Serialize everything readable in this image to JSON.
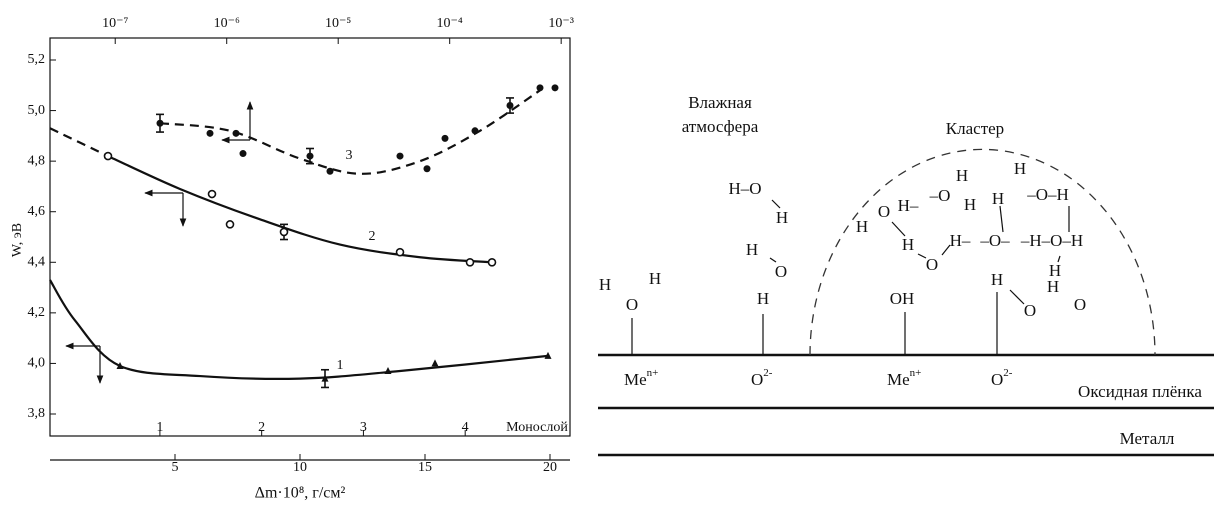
{
  "chart_data": {
    "type": "scatter",
    "ylabel": "W, эВ",
    "xlabel": "Δm·10⁸, г/см²",
    "x2label": "Монослой",
    "xlim": [
      0,
      20.8
    ],
    "xticks": [
      5,
      10,
      15,
      20
    ],
    "x2lim": [
      -0.08,
      5.03
    ],
    "x2ticks": [
      1,
      2,
      3,
      4
    ],
    "x3lim": [
      2.6e-08,
      0.0012
    ],
    "x3log": true,
    "x3ticks": [
      {
        "value": 1e-07,
        "label": "10⁻⁷"
      },
      {
        "value": 1e-06,
        "label": "10⁻⁶"
      },
      {
        "value": 1e-05,
        "label": "10⁻⁵"
      },
      {
        "value": 0.0001,
        "label": "10⁻⁴"
      },
      {
        "value": 0.001,
        "label": "10⁻³"
      }
    ],
    "ylim": [
      3.713,
      5.287
    ],
    "yticks": [
      {
        "value": 3.8,
        "label": "3,8"
      },
      {
        "value": 4.0,
        "label": "4,0"
      },
      {
        "value": 4.2,
        "label": "4,2"
      },
      {
        "value": 4.4,
        "label": "4,4"
      },
      {
        "value": 4.6,
        "label": "4,6"
      },
      {
        "value": 4.8,
        "label": "4,8"
      },
      {
        "value": 5.0,
        "label": "5,0"
      },
      {
        "value": 5.2,
        "label": "5,2"
      }
    ],
    "series": [
      {
        "name": "1",
        "color": "#111",
        "marker": "triangle",
        "x": [
          2.8,
          11.0,
          13.52,
          15.4,
          19.92
        ],
        "values": [
          3.99,
          3.94,
          3.97,
          4.0,
          4.03
        ],
        "errors": [
          null,
          0.035,
          null,
          null,
          null
        ],
        "fits": [
          {
            "dashed": false,
            "x": [
              0,
              1,
              2.8,
              6,
              10,
              14,
              19.92
            ],
            "values": [
              4.33,
              4.17,
              3.99,
              3.95,
              3.94,
              3.97,
              4.03
            ]
          }
        ]
      },
      {
        "name": "2",
        "color": "#111",
        "marker": "open-circle",
        "x": [
          2.32,
          6.48,
          7.2,
          9.36,
          14.0,
          16.8,
          17.68
        ],
        "values": [
          4.82,
          4.67,
          4.55,
          4.52,
          4.44,
          4.4,
          4.4
        ],
        "errors": [
          null,
          null,
          null,
          0.03,
          null,
          null,
          null
        ],
        "fits": [
          {
            "dashed": true,
            "x": [
              0,
              2.32
            ],
            "values": [
              4.93,
              4.82
            ]
          },
          {
            "dashed": false,
            "x": [
              2.32,
              5.2,
              8.4,
              11.6,
              14.8,
              17.68
            ],
            "values": [
              4.82,
              4.69,
              4.57,
              4.47,
              4.42,
              4.4
            ]
          }
        ]
      },
      {
        "name": "3",
        "color": "#111",
        "marker": "circle",
        "x": [
          4.4,
          6.4,
          7.44,
          7.72,
          10.4,
          11.2,
          14.0,
          15.08,
          15.8,
          17.0,
          18.4,
          19.6,
          20.2
        ],
        "values": [
          4.95,
          4.91,
          4.91,
          4.83,
          4.82,
          4.76,
          4.82,
          4.77,
          4.89,
          4.92,
          5.02,
          5.09,
          5.09
        ],
        "errors": [
          0.035,
          null,
          null,
          null,
          0.03,
          null,
          null,
          null,
          null,
          null,
          0.03,
          null,
          null
        ],
        "fits": [
          {
            "dashed": true,
            "x": [
              4.4,
              7.2,
              10,
              12.4,
              14.8,
              17.2,
              19.6
            ],
            "values": [
              4.95,
              4.92,
              4.81,
              4.75,
              4.8,
              4.92,
              5.08
            ]
          }
        ]
      }
    ]
  },
  "diagram": {
    "humid_air": [
      "Влажная",
      "атмосфера"
    ],
    "cluster": "Кластер",
    "atoms": [
      "H",
      "H",
      "O",
      "H–O",
      "H",
      "H",
      "O",
      "H",
      "H",
      "O",
      "H–",
      "–O",
      "H",
      "H",
      "H",
      "–O–H",
      "H",
      "H–",
      "–O–",
      "–H–O–H",
      "H",
      "O",
      "OH",
      "H",
      "H",
      "O",
      "H",
      "O"
    ],
    "surface_labels": [
      {
        "text": "Me",
        "sup": "n+"
      },
      {
        "text": "O",
        "sup": "2-"
      },
      {
        "text": "Me",
        "sup": "n+"
      },
      {
        "text": "O",
        "sup": "2-"
      }
    ],
    "oxide": "Оксидная плёнка",
    "metal": "Металл"
  }
}
